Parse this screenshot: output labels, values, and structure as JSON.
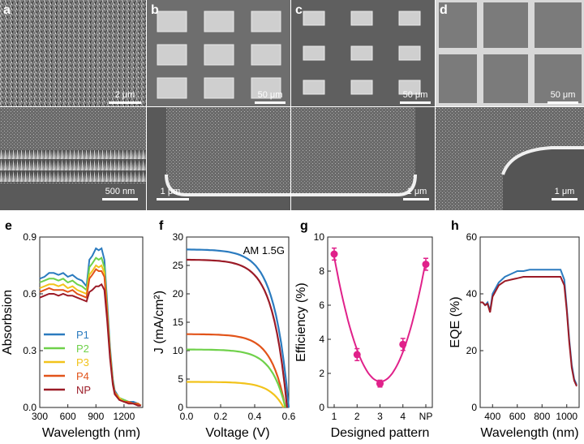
{
  "sem_panels": [
    {
      "letter": "a",
      "scale_top": "2 μm",
      "scale_bottom": "500 nm"
    },
    {
      "letter": "b",
      "scale_top": "50 μm",
      "scale_bottom": "1 μm"
    },
    {
      "letter": "c",
      "scale_top": "50 μm",
      "scale_bottom": "1 μm"
    },
    {
      "letter": "d",
      "scale_top": "50 μm",
      "scale_bottom": "1 μm"
    }
  ],
  "chart_data": [
    {
      "letter": "e",
      "type": "line",
      "xlabel": "Wavelength (nm)",
      "ylabel": "Absorbsion",
      "xlim": [
        300,
        1400
      ],
      "ylim": [
        0,
        0.9
      ],
      "xticks": [
        "300",
        "600",
        "900",
        "1200"
      ],
      "yticks": [
        "0.0",
        "0.3",
        "0.6",
        "0.9"
      ],
      "legend_position": "bottom-left",
      "series": [
        {
          "name": "P1",
          "color": "#2b7bbf",
          "x": [
            300,
            350,
            400,
            450,
            500,
            550,
            600,
            650,
            700,
            750,
            800,
            830,
            860,
            900,
            930,
            960,
            990,
            1020,
            1050,
            1080,
            1100,
            1150,
            1200,
            1250,
            1300,
            1350,
            1380
          ],
          "y": [
            0.68,
            0.69,
            0.71,
            0.71,
            0.7,
            0.71,
            0.69,
            0.7,
            0.68,
            0.67,
            0.64,
            0.78,
            0.8,
            0.84,
            0.83,
            0.84,
            0.78,
            0.56,
            0.32,
            0.15,
            0.09,
            0.05,
            0.04,
            0.03,
            0.03,
            0.02,
            0.01
          ]
        },
        {
          "name": "P2",
          "color": "#6fd14a",
          "x": [
            300,
            350,
            400,
            450,
            500,
            550,
            600,
            650,
            700,
            750,
            800,
            830,
            860,
            900,
            930,
            960,
            990,
            1020,
            1050,
            1080,
            1100,
            1150,
            1200,
            1250,
            1300,
            1350,
            1380
          ],
          "y": [
            0.66,
            0.67,
            0.68,
            0.68,
            0.67,
            0.68,
            0.66,
            0.67,
            0.65,
            0.64,
            0.62,
            0.74,
            0.76,
            0.79,
            0.78,
            0.79,
            0.74,
            0.53,
            0.3,
            0.14,
            0.08,
            0.05,
            0.04,
            0.03,
            0.02,
            0.02,
            0.01
          ]
        },
        {
          "name": "P3",
          "color": "#f2c31b",
          "x": [
            300,
            350,
            400,
            450,
            500,
            550,
            600,
            650,
            700,
            750,
            800,
            830,
            860,
            900,
            930,
            960,
            990,
            1020,
            1050,
            1080,
            1100,
            1150,
            1200,
            1250,
            1300,
            1350,
            1380
          ],
          "y": [
            0.63,
            0.64,
            0.65,
            0.65,
            0.64,
            0.65,
            0.63,
            0.64,
            0.62,
            0.61,
            0.6,
            0.7,
            0.72,
            0.75,
            0.74,
            0.75,
            0.71,
            0.51,
            0.29,
            0.13,
            0.08,
            0.05,
            0.03,
            0.03,
            0.02,
            0.02,
            0.01
          ]
        },
        {
          "name": "P4",
          "color": "#e2541a",
          "x": [
            300,
            350,
            400,
            450,
            500,
            550,
            600,
            650,
            700,
            750,
            800,
            830,
            860,
            900,
            930,
            960,
            990,
            1020,
            1050,
            1080,
            1100,
            1150,
            1200,
            1250,
            1300,
            1350,
            1380
          ],
          "y": [
            0.61,
            0.62,
            0.63,
            0.62,
            0.62,
            0.62,
            0.61,
            0.62,
            0.6,
            0.59,
            0.58,
            0.68,
            0.7,
            0.73,
            0.72,
            0.72,
            0.69,
            0.5,
            0.28,
            0.13,
            0.08,
            0.04,
            0.03,
            0.03,
            0.02,
            0.02,
            0.01
          ]
        },
        {
          "name": "NP",
          "color": "#9b1b27",
          "x": [
            300,
            350,
            400,
            450,
            500,
            550,
            600,
            650,
            700,
            750,
            800,
            830,
            860,
            900,
            930,
            960,
            990,
            1020,
            1050,
            1080,
            1100,
            1150,
            1200,
            1250,
            1300,
            1350,
            1380
          ],
          "y": [
            0.58,
            0.59,
            0.6,
            0.6,
            0.59,
            0.6,
            0.59,
            0.59,
            0.58,
            0.57,
            0.56,
            0.61,
            0.62,
            0.64,
            0.64,
            0.65,
            0.62,
            0.46,
            0.26,
            0.12,
            0.07,
            0.04,
            0.03,
            0.02,
            0.02,
            0.01,
            0.01
          ]
        }
      ]
    },
    {
      "letter": "f",
      "type": "line",
      "xlabel": "Voltage (V)",
      "ylabel": "J (mA/cm²)",
      "annotation": "AM 1.5G",
      "xlim": [
        0,
        0.6
      ],
      "ylim": [
        0,
        30
      ],
      "xticks": [
        "0.0",
        "0.2",
        "0.4",
        "0.6"
      ],
      "yticks": [
        "0",
        "5",
        "10",
        "15",
        "20",
        "25",
        "30"
      ],
      "series": [
        {
          "color": "#2b7bbf",
          "jsc": 27.8,
          "voc": 0.6
        },
        {
          "color": "#9b1b27",
          "jsc": 26.0,
          "voc": 0.59
        },
        {
          "color": "#e2541a",
          "jsc": 12.9,
          "voc": 0.58
        },
        {
          "color": "#6fd14a",
          "jsc": 10.2,
          "voc": 0.58
        },
        {
          "color": "#f2c31b",
          "jsc": 4.5,
          "voc": 0.57
        }
      ]
    },
    {
      "letter": "g",
      "type": "scatter",
      "xlabel": "Designed pattern",
      "ylabel": "Efficiency (%)",
      "categories": [
        "1",
        "2",
        "3",
        "4",
        "NP"
      ],
      "ylim": [
        0,
        10
      ],
      "yticks": [
        "0",
        "2",
        "4",
        "6",
        "8",
        "10"
      ],
      "color": "#e0218a",
      "values": [
        9.0,
        3.1,
        1.4,
        3.7,
        8.4
      ],
      "errors": [
        0.35,
        0.35,
        0.2,
        0.35,
        0.35
      ]
    },
    {
      "letter": "h",
      "type": "line",
      "xlabel": "Wavelength (nm)",
      "ylabel": "EQE (%)",
      "xlim": [
        300,
        1100
      ],
      "ylim": [
        0,
        60
      ],
      "xticks": [
        "400",
        "600",
        "800",
        "1000"
      ],
      "yticks": [
        "0",
        "20",
        "40",
        "60"
      ],
      "series": [
        {
          "color": "#2b7bbf",
          "x": [
            300,
            320,
            340,
            360,
            380,
            400,
            450,
            500,
            550,
            600,
            650,
            700,
            750,
            800,
            850,
            900,
            950,
            980,
            1000,
            1020,
            1040,
            1060,
            1080
          ],
          "y": [
            37,
            37,
            36,
            37,
            34,
            40,
            44,
            46,
            47,
            48,
            48,
            48.5,
            48.5,
            48.5,
            48.5,
            48.5,
            48.5,
            45,
            35,
            24,
            15,
            10,
            8
          ]
        },
        {
          "color": "#9b1b27",
          "x": [
            300,
            320,
            340,
            360,
            380,
            400,
            450,
            500,
            550,
            600,
            650,
            700,
            750,
            800,
            850,
            900,
            950,
            980,
            1000,
            1020,
            1040,
            1060,
            1080
          ],
          "y": [
            37,
            37,
            36,
            36.5,
            33.5,
            39,
            43,
            44.5,
            45,
            45.5,
            46,
            46,
            46,
            46,
            46,
            46,
            46,
            43,
            34,
            23,
            14,
            9.5,
            7.5
          ]
        }
      ]
    }
  ]
}
